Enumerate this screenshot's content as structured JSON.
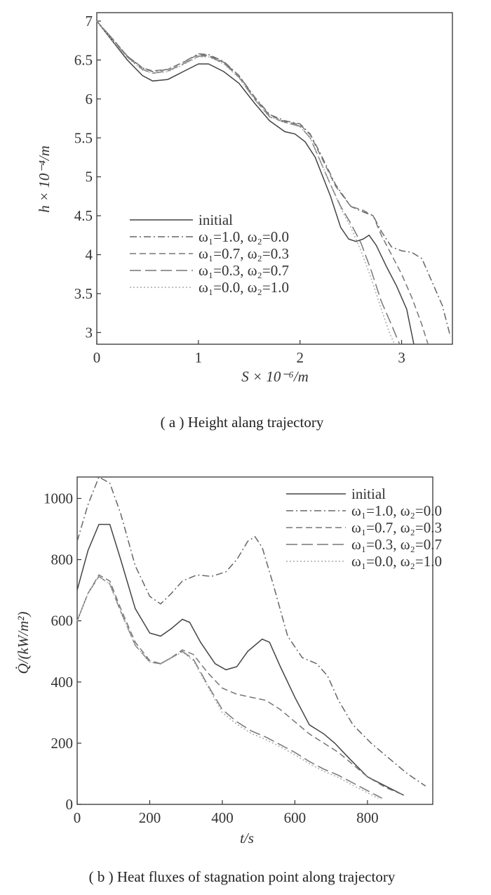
{
  "chart_data": [
    {
      "type": "line",
      "caption": "( a ) Height alang trajectory",
      "xlabel": "S × 10⁻⁶/m",
      "ylabel": "h × 10⁻⁴/m",
      "xlim": [
        0,
        3.5
      ],
      "ylim": [
        2.85,
        7.0
      ],
      "x_ticks": [
        "0",
        "1",
        "2",
        "3"
      ],
      "y_ticks": [
        "3",
        "3.5",
        "4",
        "4.5",
        "5",
        "5.5",
        "6",
        "6.5",
        "7"
      ],
      "legend_position": "center-left",
      "series": [
        {
          "name": "initial",
          "dash": "solid",
          "points": [
            [
              0,
              7.0
            ],
            [
              0.15,
              6.75
            ],
            [
              0.3,
              6.5
            ],
            [
              0.45,
              6.3
            ],
            [
              0.55,
              6.23
            ],
            [
              0.7,
              6.25
            ],
            [
              0.85,
              6.35
            ],
            [
              1.0,
              6.45
            ],
            [
              1.1,
              6.45
            ],
            [
              1.25,
              6.35
            ],
            [
              1.4,
              6.2
            ],
            [
              1.55,
              5.95
            ],
            [
              1.7,
              5.72
            ],
            [
              1.85,
              5.58
            ],
            [
              1.95,
              5.55
            ],
            [
              2.05,
              5.45
            ],
            [
              2.15,
              5.25
            ],
            [
              2.3,
              4.75
            ],
            [
              2.4,
              4.35
            ],
            [
              2.48,
              4.2
            ],
            [
              2.55,
              4.17
            ],
            [
              2.62,
              4.2
            ],
            [
              2.68,
              4.25
            ],
            [
              2.75,
              4.12
            ],
            [
              2.85,
              3.85
            ],
            [
              2.95,
              3.6
            ],
            [
              3.05,
              3.3
            ],
            [
              3.12,
              2.85
            ]
          ]
        },
        {
          "name": "ω₁=1.0, ω₂=0.0",
          "dash": "dashdot",
          "points": [
            [
              0,
              7.0
            ],
            [
              0.15,
              6.78
            ],
            [
              0.3,
              6.55
            ],
            [
              0.45,
              6.4
            ],
            [
              0.55,
              6.35
            ],
            [
              0.7,
              6.38
            ],
            [
              0.85,
              6.47
            ],
            [
              1.0,
              6.58
            ],
            [
              1.1,
              6.57
            ],
            [
              1.25,
              6.48
            ],
            [
              1.4,
              6.3
            ],
            [
              1.55,
              6.03
            ],
            [
              1.7,
              5.8
            ],
            [
              1.85,
              5.72
            ],
            [
              2.0,
              5.68
            ],
            [
              2.1,
              5.55
            ],
            [
              2.2,
              5.3
            ],
            [
              2.35,
              4.9
            ],
            [
              2.5,
              4.62
            ],
            [
              2.62,
              4.55
            ],
            [
              2.72,
              4.5
            ],
            [
              2.8,
              4.3
            ],
            [
              2.9,
              4.1
            ],
            [
              3.0,
              4.05
            ],
            [
              3.1,
              4.03
            ],
            [
              3.2,
              3.95
            ],
            [
              3.3,
              3.65
            ],
            [
              3.4,
              3.35
            ],
            [
              3.48,
              2.95
            ]
          ]
        },
        {
          "name": "ω₁=0.7, ω₂=0.3",
          "dash": "dash",
          "points": [
            [
              0,
              7.0
            ],
            [
              0.15,
              6.78
            ],
            [
              0.3,
              6.55
            ],
            [
              0.45,
              6.4
            ],
            [
              0.55,
              6.36
            ],
            [
              0.7,
              6.38
            ],
            [
              0.85,
              6.47
            ],
            [
              1.0,
              6.57
            ],
            [
              1.1,
              6.56
            ],
            [
              1.25,
              6.47
            ],
            [
              1.4,
              6.3
            ],
            [
              1.55,
              6.02
            ],
            [
              1.7,
              5.79
            ],
            [
              1.85,
              5.71
            ],
            [
              2.0,
              5.67
            ],
            [
              2.1,
              5.54
            ],
            [
              2.2,
              5.28
            ],
            [
              2.35,
              4.88
            ],
            [
              2.5,
              4.62
            ],
            [
              2.62,
              4.57
            ],
            [
              2.72,
              4.5
            ],
            [
              2.8,
              4.25
            ],
            [
              2.9,
              4.0
            ],
            [
              3.0,
              3.75
            ],
            [
              3.1,
              3.45
            ],
            [
              3.2,
              3.1
            ],
            [
              3.26,
              2.85
            ]
          ]
        },
        {
          "name": "ω₁=0.3, ω₂=0.7",
          "dash": "longdash",
          "points": [
            [
              0,
              7.0
            ],
            [
              0.15,
              6.77
            ],
            [
              0.3,
              6.54
            ],
            [
              0.45,
              6.38
            ],
            [
              0.55,
              6.33
            ],
            [
              0.7,
              6.36
            ],
            [
              0.85,
              6.45
            ],
            [
              1.0,
              6.55
            ],
            [
              1.1,
              6.55
            ],
            [
              1.25,
              6.46
            ],
            [
              1.4,
              6.28
            ],
            [
              1.55,
              6.0
            ],
            [
              1.7,
              5.77
            ],
            [
              1.85,
              5.7
            ],
            [
              2.0,
              5.65
            ],
            [
              2.1,
              5.5
            ],
            [
              2.2,
              5.2
            ],
            [
              2.3,
              4.9
            ],
            [
              2.4,
              4.62
            ],
            [
              2.5,
              4.4
            ],
            [
              2.6,
              4.15
            ],
            [
              2.7,
              3.8
            ],
            [
              2.8,
              3.4
            ],
            [
              2.9,
              3.1
            ],
            [
              2.98,
              2.85
            ]
          ]
        },
        {
          "name": "ω₁=0.0, ω₂=1.0",
          "dash": "dot",
          "points": [
            [
              0,
              7.0
            ],
            [
              0.15,
              6.76
            ],
            [
              0.3,
              6.53
            ],
            [
              0.45,
              6.37
            ],
            [
              0.55,
              6.33
            ],
            [
              0.7,
              6.35
            ],
            [
              0.85,
              6.44
            ],
            [
              1.0,
              6.54
            ],
            [
              1.1,
              6.54
            ],
            [
              1.25,
              6.45
            ],
            [
              1.4,
              6.27
            ],
            [
              1.55,
              6.0
            ],
            [
              1.7,
              5.77
            ],
            [
              1.85,
              5.7
            ],
            [
              2.0,
              5.64
            ],
            [
              2.1,
              5.5
            ],
            [
              2.2,
              5.2
            ],
            [
              2.3,
              4.9
            ],
            [
              2.4,
              4.6
            ],
            [
              2.5,
              4.35
            ],
            [
              2.6,
              4.05
            ],
            [
              2.7,
              3.7
            ],
            [
              2.8,
              3.3
            ],
            [
              2.88,
              3.0
            ],
            [
              2.93,
              2.85
            ]
          ]
        }
      ]
    },
    {
      "type": "line",
      "caption": "( b ) Heat fluxes of stagnation point along trajectory",
      "xlabel": "t/s",
      "ylabel": "Q̇/(kW/m²)",
      "xlim": [
        0,
        980
      ],
      "ylim": [
        0,
        1070
      ],
      "x_ticks": [
        "0",
        "200",
        "400",
        "600",
        "800"
      ],
      "y_ticks": [
        "0",
        "200",
        "400",
        "600",
        "800",
        "1000"
      ],
      "legend_position": "top-right",
      "series": [
        {
          "name": "initial",
          "dash": "solid",
          "points": [
            [
              0,
              700
            ],
            [
              30,
              830
            ],
            [
              60,
              915
            ],
            [
              90,
              915
            ],
            [
              120,
              800
            ],
            [
              160,
              640
            ],
            [
              200,
              560
            ],
            [
              230,
              550
            ],
            [
              260,
              575
            ],
            [
              290,
              605
            ],
            [
              310,
              595
            ],
            [
              340,
              530
            ],
            [
              380,
              460
            ],
            [
              410,
              440
            ],
            [
              440,
              450
            ],
            [
              470,
              500
            ],
            [
              510,
              540
            ],
            [
              530,
              530
            ],
            [
              560,
              450
            ],
            [
              600,
              350
            ],
            [
              640,
              260
            ],
            [
              680,
              230
            ],
            [
              710,
              200
            ],
            [
              750,
              150
            ],
            [
              800,
              90
            ],
            [
              850,
              60
            ],
            [
              900,
              30
            ]
          ]
        },
        {
          "name": "ω₁=1.0, ω₂=0.0",
          "dash": "dashdot",
          "points": [
            [
              0,
              860
            ],
            [
              30,
              980
            ],
            [
              60,
              1070
            ],
            [
              90,
              1050
            ],
            [
              120,
              950
            ],
            [
              160,
              780
            ],
            [
              200,
              680
            ],
            [
              230,
              655
            ],
            [
              260,
              690
            ],
            [
              290,
              730
            ],
            [
              330,
              750
            ],
            [
              370,
              745
            ],
            [
              410,
              760
            ],
            [
              440,
              800
            ],
            [
              470,
              860
            ],
            [
              490,
              875
            ],
            [
              510,
              840
            ],
            [
              540,
              720
            ],
            [
              580,
              550
            ],
            [
              620,
              480
            ],
            [
              660,
              460
            ],
            [
              690,
              420
            ],
            [
              720,
              340
            ],
            [
              760,
              260
            ],
            [
              810,
              200
            ],
            [
              860,
              150
            ],
            [
              910,
              100
            ],
            [
              960,
              60
            ]
          ]
        },
        {
          "name": "ω₁=0.7, ω₂=0.3",
          "dash": "dash",
          "points": [
            [
              0,
              600
            ],
            [
              30,
              690
            ],
            [
              60,
              750
            ],
            [
              90,
              730
            ],
            [
              120,
              640
            ],
            [
              160,
              530
            ],
            [
              200,
              470
            ],
            [
              230,
              460
            ],
            [
              260,
              480
            ],
            [
              290,
              505
            ],
            [
              320,
              490
            ],
            [
              360,
              430
            ],
            [
              400,
              380
            ],
            [
              440,
              360
            ],
            [
              480,
              350
            ],
            [
              520,
              340
            ],
            [
              560,
              310
            ],
            [
              600,
              270
            ],
            [
              640,
              230
            ],
            [
              680,
              200
            ],
            [
              720,
              170
            ],
            [
              760,
              130
            ],
            [
              800,
              90
            ],
            [
              850,
              55
            ],
            [
              900,
              30
            ]
          ]
        },
        {
          "name": "ω₁=0.3, ω₂=0.7",
          "dash": "longdash",
          "points": [
            [
              0,
              600
            ],
            [
              30,
              690
            ],
            [
              60,
              745
            ],
            [
              90,
              720
            ],
            [
              120,
              630
            ],
            [
              160,
              520
            ],
            [
              200,
              465
            ],
            [
              230,
              460
            ],
            [
              260,
              480
            ],
            [
              290,
              500
            ],
            [
              320,
              475
            ],
            [
              360,
              390
            ],
            [
              400,
              310
            ],
            [
              440,
              270
            ],
            [
              480,
              240
            ],
            [
              520,
              220
            ],
            [
              560,
              195
            ],
            [
              600,
              170
            ],
            [
              640,
              140
            ],
            [
              680,
              115
            ],
            [
              720,
              95
            ],
            [
              760,
              70
            ],
            [
              800,
              45
            ],
            [
              840,
              20
            ]
          ]
        },
        {
          "name": "ω₁=0.0, ω₂=1.0",
          "dash": "dot",
          "points": [
            [
              0,
              600
            ],
            [
              30,
              690
            ],
            [
              60,
              745
            ],
            [
              90,
              720
            ],
            [
              120,
              630
            ],
            [
              160,
              520
            ],
            [
              200,
              465
            ],
            [
              230,
              458
            ],
            [
              260,
              478
            ],
            [
              290,
              498
            ],
            [
              320,
              470
            ],
            [
              360,
              385
            ],
            [
              400,
              300
            ],
            [
              440,
              262
            ],
            [
              480,
              232
            ],
            [
              520,
              212
            ],
            [
              560,
              188
            ],
            [
              600,
              162
            ],
            [
              640,
              133
            ],
            [
              680,
              108
            ],
            [
              720,
              88
            ],
            [
              760,
              62
            ],
            [
              800,
              38
            ],
            [
              830,
              20
            ]
          ]
        }
      ]
    }
  ]
}
